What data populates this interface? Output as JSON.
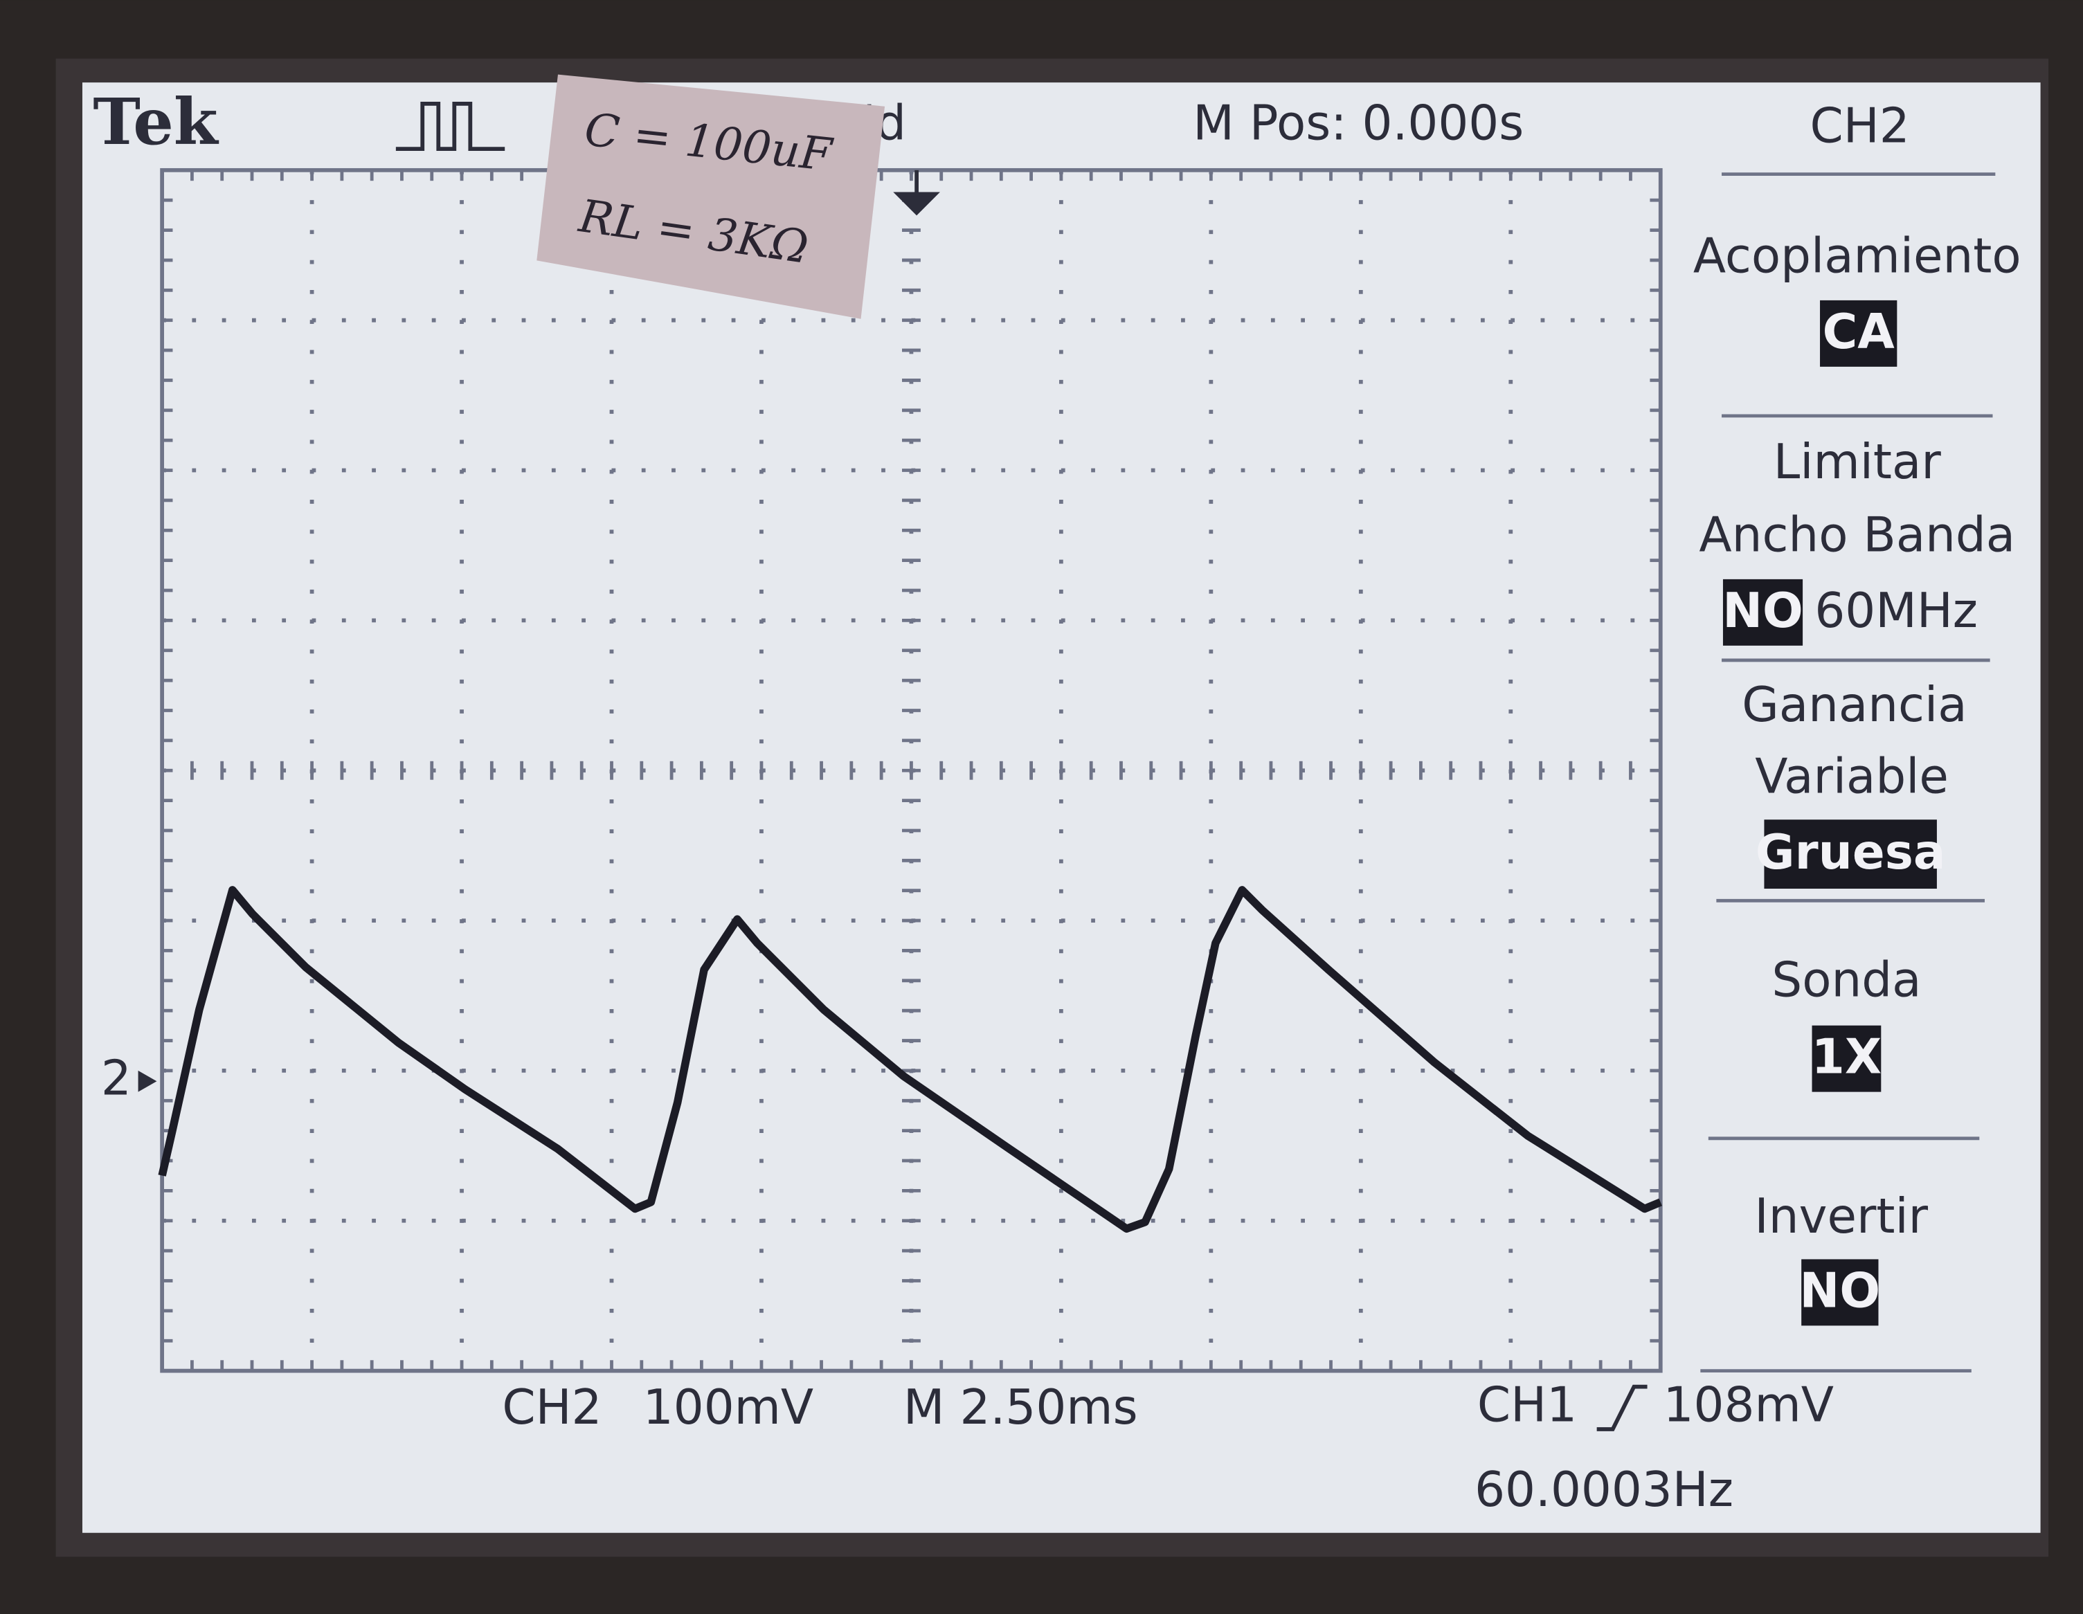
{
  "header": {
    "brand": "Tek",
    "status": "Trig'd",
    "position": "M Pos: 0.000s",
    "channel": "CH2"
  },
  "note": {
    "lines": [
      "C = 100uF",
      "RL = 3KΩ"
    ]
  },
  "menu": [
    {
      "label": [
        "Acoplamiento"
      ],
      "value": "CA"
    },
    {
      "label": [
        "Limitar",
        "Ancho Banda"
      ],
      "value": "NO",
      "extra": "60MHz"
    },
    {
      "label": [
        "Ganancia",
        "Variable"
      ],
      "value": "Gruesa"
    },
    {
      "label": [
        "Sonda"
      ],
      "value": "1X"
    },
    {
      "label": [
        "Invertir"
      ],
      "value": "NO"
    }
  ],
  "trace_marker": "2",
  "footer": {
    "channel": "CH2",
    "scale": "100mV",
    "timebase": "M 2.50ms",
    "trigger_source": "CH1",
    "trigger_level": "108mV",
    "frequency": "60.0003Hz"
  }
}
